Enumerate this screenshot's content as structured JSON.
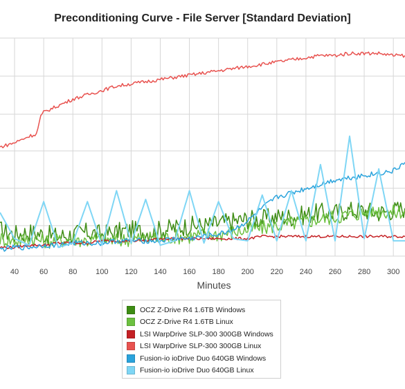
{
  "chart_data": {
    "type": "line",
    "title": "Preconditioning Curve - File Server [Standard Deviation]",
    "xlabel": "Minutes",
    "ylabel": "",
    "x_ticks": [
      40,
      60,
      80,
      100,
      120,
      140,
      160,
      180,
      200,
      220,
      240,
      260,
      280,
      300
    ],
    "xlim": [
      30,
      308
    ],
    "ylim": [
      0,
      1
    ],
    "grid": true,
    "legend_position": "bottom-center",
    "series": [
      {
        "name": "OCZ Z-Drive R4 1.6TB Windows",
        "color": "#3d8c13",
        "x": [
          30,
          40,
          50,
          60,
          70,
          80,
          90,
          100,
          110,
          120,
          130,
          140,
          150,
          160,
          170,
          180,
          190,
          200,
          210,
          220,
          230,
          240,
          250,
          260,
          270,
          280,
          290,
          300,
          308
        ],
        "y": [
          0.12,
          0.1,
          0.11,
          0.1,
          0.09,
          0.1,
          0.11,
          0.1,
          0.11,
          0.12,
          0.11,
          0.12,
          0.13,
          0.14,
          0.14,
          0.15,
          0.16,
          0.17,
          0.17,
          0.18,
          0.18,
          0.19,
          0.2,
          0.2,
          0.21,
          0.21,
          0.2,
          0.21,
          0.22
        ]
      },
      {
        "name": "OCZ Z-Drive R4 1.6TB Linux",
        "color": "#6cc040",
        "x": [
          30,
          40,
          50,
          60,
          70,
          80,
          90,
          100,
          110,
          120,
          130,
          140,
          150,
          160,
          170,
          180,
          190,
          200,
          210,
          220,
          230,
          240,
          250,
          260,
          270,
          280,
          290,
          300,
          308
        ],
        "y": [
          0.08,
          0.07,
          0.08,
          0.07,
          0.07,
          0.08,
          0.07,
          0.08,
          0.07,
          0.08,
          0.08,
          0.08,
          0.09,
          0.09,
          0.1,
          0.1,
          0.11,
          0.12,
          0.13,
          0.14,
          0.15,
          0.16,
          0.17,
          0.18,
          0.19,
          0.2,
          0.21,
          0.2,
          0.21
        ]
      },
      {
        "name": "LSI WarpDrive SLP-300 300GB Windows",
        "color": "#c42024",
        "x": [
          30,
          40,
          50,
          60,
          70,
          80,
          90,
          100,
          110,
          120,
          130,
          140,
          150,
          160,
          170,
          180,
          190,
          200,
          210,
          220,
          230,
          240,
          250,
          260,
          270,
          280,
          290,
          300,
          308
        ],
        "y": [
          0.04,
          0.04,
          0.05,
          0.05,
          0.06,
          0.06,
          0.06,
          0.07,
          0.07,
          0.07,
          0.07,
          0.08,
          0.08,
          0.08,
          0.08,
          0.08,
          0.08,
          0.08,
          0.09,
          0.09,
          0.09,
          0.09,
          0.09,
          0.09,
          0.09,
          0.09,
          0.09,
          0.09,
          0.09
        ]
      },
      {
        "name": "LSI WarpDrive SLP-300 300GB Linux",
        "color": "#e8524f",
        "x": [
          30,
          40,
          50,
          55,
          58,
          60,
          70,
          80,
          90,
          100,
          110,
          120,
          130,
          140,
          150,
          160,
          170,
          180,
          190,
          200,
          210,
          220,
          230,
          240,
          250,
          260,
          270,
          280,
          290,
          300,
          308
        ],
        "y": [
          0.5,
          0.52,
          0.55,
          0.56,
          0.64,
          0.66,
          0.69,
          0.72,
          0.74,
          0.76,
          0.78,
          0.79,
          0.8,
          0.81,
          0.82,
          0.83,
          0.84,
          0.85,
          0.86,
          0.87,
          0.88,
          0.89,
          0.9,
          0.91,
          0.92,
          0.92,
          0.93,
          0.93,
          0.93,
          0.92,
          0.92
        ]
      },
      {
        "name": "Fusion-io ioDrive Duo 640GB Windows",
        "color": "#2aa3dc",
        "x": [
          30,
          40,
          50,
          60,
          70,
          80,
          90,
          100,
          110,
          120,
          130,
          140,
          150,
          160,
          170,
          180,
          190,
          200,
          210,
          220,
          230,
          240,
          250,
          260,
          270,
          280,
          290,
          300,
          308
        ],
        "y": [
          0.03,
          0.04,
          0.04,
          0.05,
          0.05,
          0.06,
          0.06,
          0.06,
          0.07,
          0.07,
          0.07,
          0.07,
          0.08,
          0.08,
          0.09,
          0.1,
          0.12,
          0.16,
          0.22,
          0.27,
          0.29,
          0.31,
          0.33,
          0.35,
          0.36,
          0.37,
          0.38,
          0.39,
          0.43
        ]
      },
      {
        "name": "Fusion-io ioDrive Duo 640GB Linux",
        "color": "#7fd6f5",
        "x": [
          30,
          40,
          50,
          60,
          70,
          80,
          90,
          100,
          110,
          120,
          130,
          140,
          150,
          160,
          170,
          180,
          190,
          200,
          210,
          220,
          230,
          240,
          250,
          260,
          270,
          280,
          290,
          300,
          308
        ],
        "y": [
          0.2,
          0.08,
          0.05,
          0.25,
          0.04,
          0.06,
          0.25,
          0.05,
          0.3,
          0.06,
          0.26,
          0.05,
          0.07,
          0.3,
          0.06,
          0.25,
          0.08,
          0.07,
          0.28,
          0.07,
          0.3,
          0.07,
          0.42,
          0.07,
          0.55,
          0.08,
          0.4,
          0.07,
          0.07
        ]
      }
    ]
  }
}
